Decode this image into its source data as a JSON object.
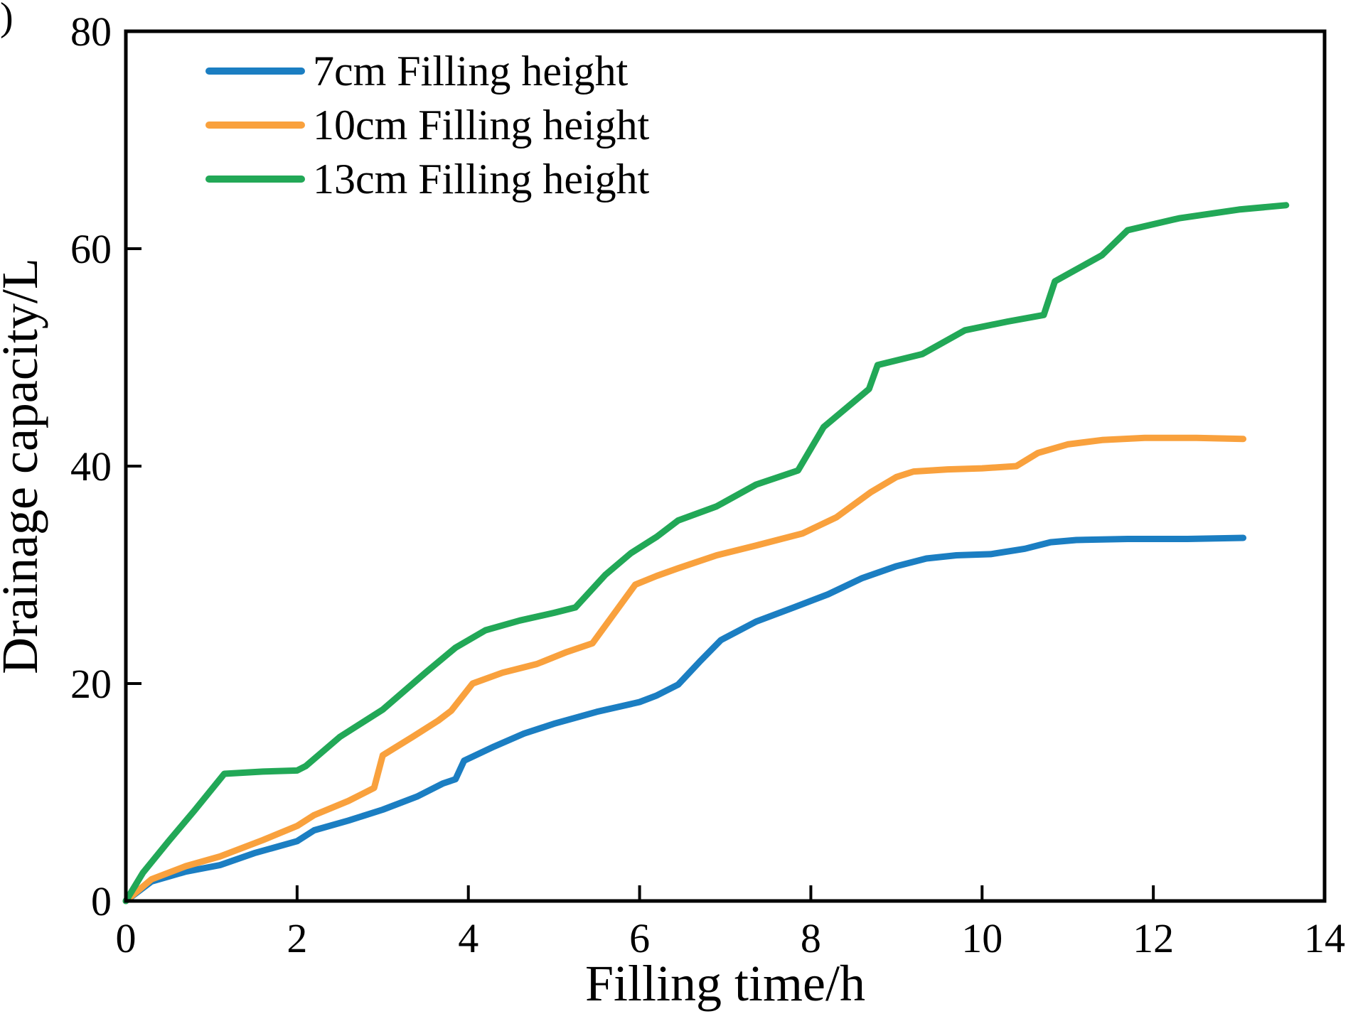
{
  "figure": {
    "background": "#ffffff",
    "axis_color": "#000000",
    "corner_artifact": ")"
  },
  "chart_data": {
    "type": "line",
    "title": "",
    "xlabel": "Filling time/h",
    "ylabel": "Drainage capacity/L",
    "xlim": [
      0,
      14
    ],
    "ylim": [
      0,
      80
    ],
    "x_ticks": [
      0,
      2,
      4,
      6,
      8,
      10,
      12,
      14
    ],
    "y_ticks": [
      0,
      20,
      40,
      60,
      80
    ],
    "grid": false,
    "legend_position": "top-left-inside",
    "series": [
      {
        "name": "7cm Filling height",
        "color": "#1b7ec2",
        "points": [
          [
            0,
            0
          ],
          [
            0.3,
            1.8
          ],
          [
            0.7,
            2.7
          ],
          [
            1.1,
            3.3
          ],
          [
            1.5,
            4.4
          ],
          [
            2.0,
            5.5
          ],
          [
            2.2,
            6.5
          ],
          [
            2.6,
            7.4
          ],
          [
            3.0,
            8.4
          ],
          [
            3.4,
            9.6
          ],
          [
            3.7,
            10.8
          ],
          [
            3.85,
            11.2
          ],
          [
            3.95,
            12.9
          ],
          [
            4.3,
            14.2
          ],
          [
            4.65,
            15.4
          ],
          [
            5.0,
            16.3
          ],
          [
            5.5,
            17.4
          ],
          [
            6.0,
            18.3
          ],
          [
            6.2,
            18.9
          ],
          [
            6.45,
            19.9
          ],
          [
            6.7,
            22.0
          ],
          [
            6.95,
            24.0
          ],
          [
            7.36,
            25.7
          ],
          [
            7.8,
            27.0
          ],
          [
            8.2,
            28.2
          ],
          [
            8.6,
            29.7
          ],
          [
            9.0,
            30.8
          ],
          [
            9.35,
            31.5
          ],
          [
            9.7,
            31.8
          ],
          [
            10.1,
            31.9
          ],
          [
            10.5,
            32.4
          ],
          [
            10.8,
            33.0
          ],
          [
            11.1,
            33.2
          ],
          [
            11.7,
            33.3
          ],
          [
            12.4,
            33.3
          ],
          [
            13.05,
            33.4
          ]
        ]
      },
      {
        "name": "10cm Filling height",
        "color": "#f9a13d",
        "points": [
          [
            0,
            0
          ],
          [
            0.3,
            2.0
          ],
          [
            0.7,
            3.2
          ],
          [
            1.1,
            4.1
          ],
          [
            1.6,
            5.6
          ],
          [
            2.0,
            6.9
          ],
          [
            2.2,
            7.9
          ],
          [
            2.6,
            9.2
          ],
          [
            2.9,
            10.4
          ],
          [
            3.0,
            13.4
          ],
          [
            3.35,
            15.1
          ],
          [
            3.65,
            16.6
          ],
          [
            3.8,
            17.5
          ],
          [
            4.05,
            20.0
          ],
          [
            4.4,
            21.0
          ],
          [
            4.8,
            21.8
          ],
          [
            5.15,
            22.9
          ],
          [
            5.45,
            23.7
          ],
          [
            5.95,
            29.1
          ],
          [
            6.2,
            29.9
          ],
          [
            6.45,
            30.6
          ],
          [
            6.9,
            31.8
          ],
          [
            7.36,
            32.7
          ],
          [
            7.9,
            33.8
          ],
          [
            8.3,
            35.3
          ],
          [
            8.7,
            37.6
          ],
          [
            9.0,
            39.0
          ],
          [
            9.2,
            39.5
          ],
          [
            9.6,
            39.7
          ],
          [
            10.0,
            39.8
          ],
          [
            10.4,
            40.0
          ],
          [
            10.65,
            41.2
          ],
          [
            11.0,
            42.0
          ],
          [
            11.4,
            42.4
          ],
          [
            11.9,
            42.6
          ],
          [
            12.5,
            42.6
          ],
          [
            13.05,
            42.5
          ]
        ]
      },
      {
        "name": "13cm Filling height",
        "color": "#22a857",
        "points": [
          [
            0,
            0
          ],
          [
            0.2,
            2.6
          ],
          [
            0.5,
            5.5
          ],
          [
            0.8,
            8.3
          ],
          [
            1.15,
            11.7
          ],
          [
            1.6,
            11.9
          ],
          [
            2.0,
            12.0
          ],
          [
            2.1,
            12.4
          ],
          [
            2.5,
            15.1
          ],
          [
            3.0,
            17.6
          ],
          [
            3.5,
            21.0
          ],
          [
            3.85,
            23.3
          ],
          [
            4.2,
            24.9
          ],
          [
            4.6,
            25.8
          ],
          [
            5.0,
            26.5
          ],
          [
            5.25,
            27.0
          ],
          [
            5.6,
            30.0
          ],
          [
            5.9,
            32.0
          ],
          [
            6.2,
            33.5
          ],
          [
            6.45,
            35.0
          ],
          [
            6.9,
            36.3
          ],
          [
            7.36,
            38.3
          ],
          [
            7.85,
            39.6
          ],
          [
            8.15,
            43.6
          ],
          [
            8.68,
            47.1
          ],
          [
            8.78,
            49.3
          ],
          [
            9.3,
            50.3
          ],
          [
            9.8,
            52.5
          ],
          [
            10.3,
            53.3
          ],
          [
            10.72,
            53.9
          ],
          [
            10.85,
            57.0
          ],
          [
            11.4,
            59.4
          ],
          [
            11.7,
            61.7
          ],
          [
            12.3,
            62.8
          ],
          [
            13.0,
            63.6
          ],
          [
            13.55,
            64.0
          ]
        ]
      }
    ]
  }
}
